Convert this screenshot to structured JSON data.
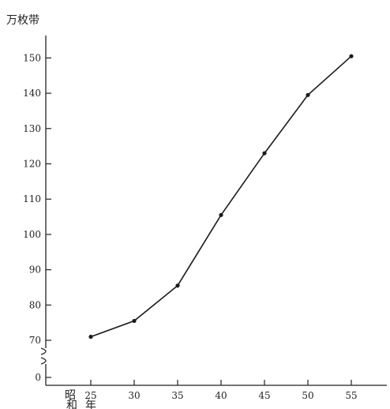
{
  "chart_data": {
    "type": "line",
    "ylabel": "万枚带",
    "x": [
      25,
      30,
      35,
      40,
      45,
      50,
      55
    ],
    "x_tick_labels": [
      "25",
      "30",
      "35",
      "40",
      "45",
      "50",
      "55"
    ],
    "x_prefix_labels": [
      "昭",
      "和",
      "年"
    ],
    "values": [
      71,
      75.5,
      85.5,
      105.5,
      123,
      139.5,
      150.5
    ],
    "ylim": [
      70,
      150
    ],
    "y_ticks": [
      0,
      70,
      80,
      90,
      100,
      110,
      120,
      130,
      140,
      150
    ],
    "y_tick_labels": [
      "0",
      "70",
      "80",
      "90",
      "100",
      "110",
      "120",
      "130",
      "140",
      "150"
    ],
    "axis_break": true,
    "grid": false,
    "marker_color": "#1a1a1a"
  }
}
